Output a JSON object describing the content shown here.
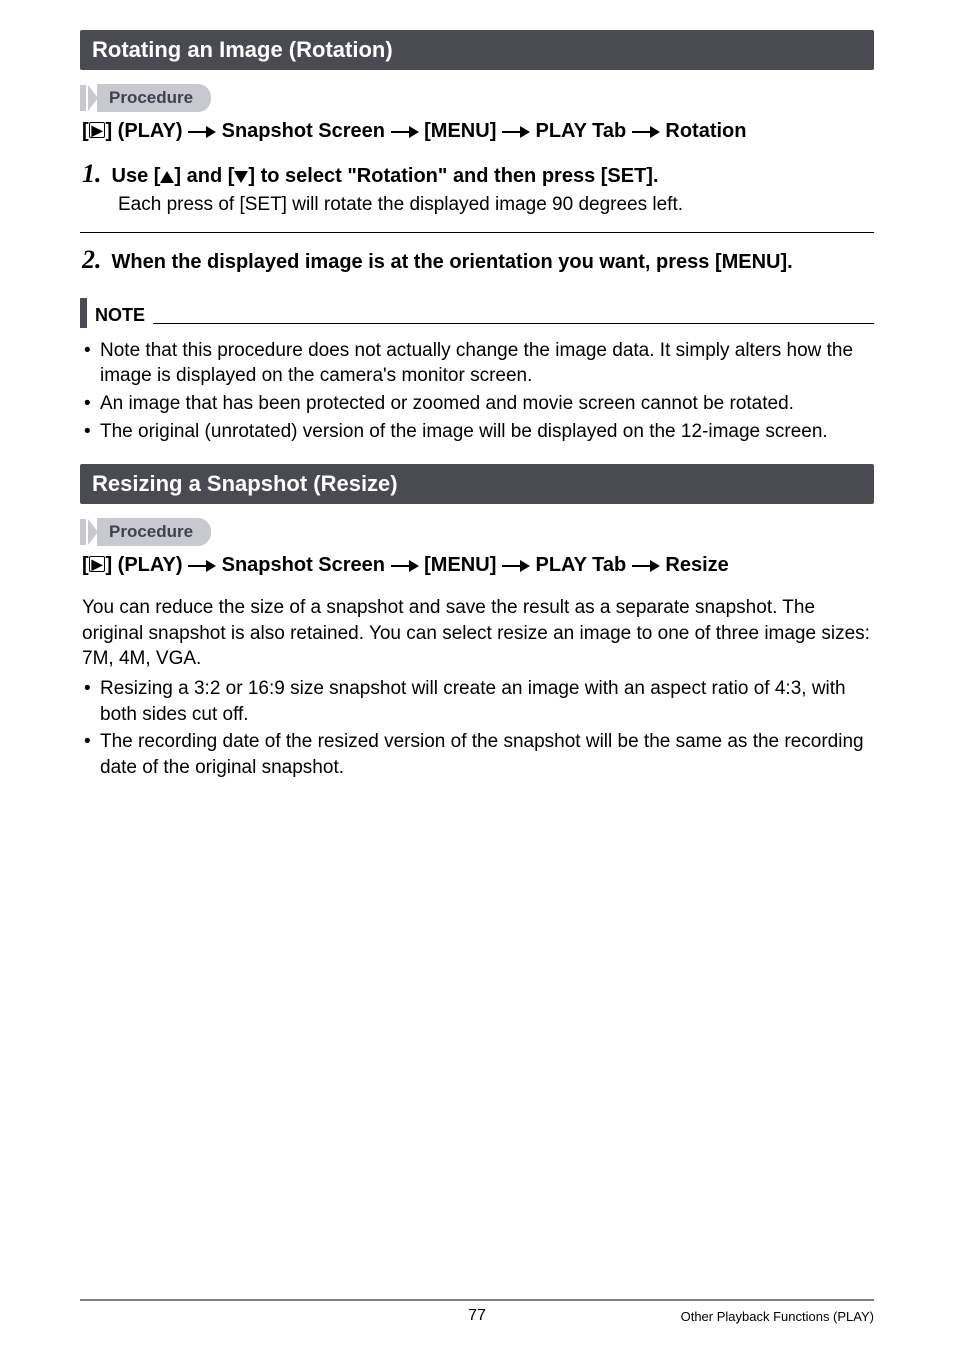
{
  "section1": {
    "title": "Rotating an Image (Rotation)",
    "procedure_label": "Procedure",
    "breadcrumb": {
      "p1": "] (PLAY)",
      "p2": "Snapshot Screen",
      "p3": "[MENU]",
      "p4": "PLAY Tab",
      "p5": "Rotation"
    },
    "step1": {
      "num": "1.",
      "pre": "Use [",
      "mid": "] and [",
      "post": "] to select \"Rotation\" and then press [SET].",
      "sub": "Each press of [SET] will rotate the displayed image 90 degrees left."
    },
    "step2": {
      "num": "2.",
      "text": "When the displayed image is at the orientation you want, press [MENU]."
    },
    "note_label": "NOTE",
    "notes": {
      "n1": "Note that this procedure does not actually change the image data. It simply alters how the image is displayed on the camera's monitor screen.",
      "n2": "An image that has been protected or zoomed and movie screen cannot be rotated.",
      "n3": "The original (unrotated) version of the image will be displayed on the 12-image screen."
    }
  },
  "section2": {
    "title": "Resizing a Snapshot (Resize)",
    "procedure_label": "Procedure",
    "breadcrumb": {
      "p1": "] (PLAY)",
      "p2": "Snapshot Screen",
      "p3": "[MENU]",
      "p4": "PLAY Tab",
      "p5": "Resize"
    },
    "body": "You can reduce the size of a snapshot and save the result as a separate snapshot. The original snapshot is also retained. You can select resize an image to one of three image sizes: 7M, 4M, VGA.",
    "bullets": {
      "b1": "Resizing a 3:2 or 16:9 size snapshot will create an image with an aspect ratio of 4:3, with both sides cut off.",
      "b2": "The recording date of the resized version of the snapshot will be the same as the recording date of the original snapshot."
    }
  },
  "footer": {
    "page": "77",
    "title": "Other Playback Functions (PLAY)"
  }
}
